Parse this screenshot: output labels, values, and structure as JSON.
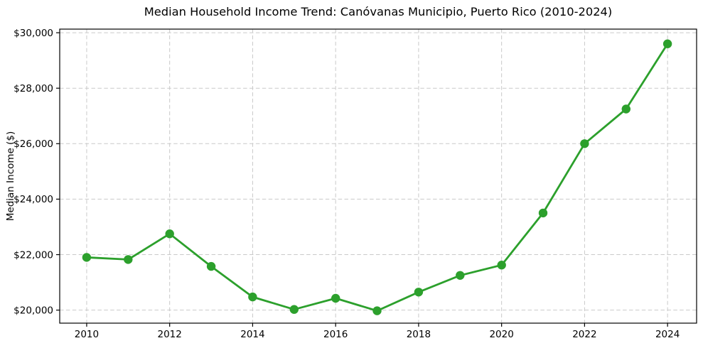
{
  "chart_data": {
    "type": "line",
    "title": "Median Household Income Trend: Canóvanas Municipio, Puerto Rico (2010-2024)",
    "xlabel": "",
    "ylabel": "Median Income ($)",
    "x": [
      2010,
      2011,
      2012,
      2013,
      2014,
      2015,
      2016,
      2017,
      2018,
      2019,
      2020,
      2021,
      2022,
      2023,
      2024
    ],
    "values": [
      21900,
      21825,
      22750,
      21575,
      20475,
      20025,
      20425,
      19975,
      20650,
      21250,
      21625,
      23500,
      26000,
      27250,
      29600
    ],
    "xticks": [
      2010,
      2012,
      2014,
      2016,
      2018,
      2020,
      2022,
      2024
    ],
    "xtick_labels": [
      "2010",
      "2012",
      "2014",
      "2016",
      "2018",
      "2020",
      "2022",
      "2024"
    ],
    "yticks": [
      20000,
      22000,
      24000,
      26000,
      28000,
      30000
    ],
    "ytick_labels": [
      "$20,000",
      "$22,000",
      "$24,000",
      "$26,000",
      "$28,000",
      "$30,000"
    ],
    "xlim": [
      2009.35,
      2024.7
    ],
    "ylim": [
      19530,
      30130
    ],
    "grid": "dashed, both axes",
    "legend": "none",
    "line_color": "#2ca02c",
    "marker": "filled-circle",
    "grid_color": "#c9c9c9",
    "axis_color": "#000000",
    "background_color": "#ffffff"
  }
}
